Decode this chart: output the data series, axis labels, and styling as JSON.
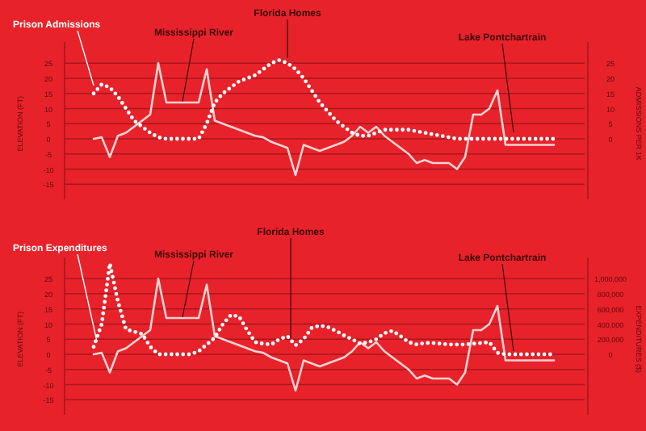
{
  "chart_data": [
    {
      "type": "line",
      "categories": [
        null,
        null,
        null,
        null,
        null,
        null,
        null,
        null,
        null,
        null,
        null,
        null,
        null,
        null,
        null,
        null,
        null,
        null,
        null,
        null,
        null,
        null,
        null,
        null,
        null,
        null,
        null,
        null,
        null,
        null,
        null,
        null,
        null,
        null,
        null,
        null,
        null,
        null,
        null,
        null,
        null,
        null,
        null,
        null,
        null,
        null,
        null,
        null,
        null,
        null,
        null,
        null,
        null,
        null,
        null,
        null,
        null,
        null
      ],
      "ylabel": "ELEVATION (FT)",
      "y2label": "ADMISSIONS PER 1K",
      "ylim": [
        -20,
        32
      ],
      "yticks": [
        25,
        20,
        15,
        10,
        5,
        0,
        -5,
        -10,
        -15
      ],
      "y2lim": [
        -20,
        32
      ],
      "y2ticks": [
        25,
        20,
        15,
        10,
        5,
        0
      ],
      "grid": "y",
      "tick_labels": "y",
      "annotations": [
        "Mississippi River",
        "Florida Homes",
        "Lake Pontchartrain"
      ],
      "series": [
        {
          "color": "#f6d2d2",
          "line_style": "solid",
          "values": [
            0,
            0.5,
            -6,
            1,
            2,
            4,
            6,
            8,
            25,
            12,
            12,
            12,
            12,
            12,
            23,
            6,
            5,
            4,
            3,
            2,
            1,
            0.5,
            -1,
            -2,
            -3,
            -12,
            -2,
            -3,
            -4,
            -3,
            -2,
            -1,
            1,
            4,
            2,
            4,
            1,
            -1,
            -3,
            -5,
            -8,
            -7,
            -8,
            -8,
            -8,
            -10,
            -6,
            8,
            8,
            10,
            16,
            -2,
            -2,
            -2,
            -2,
            -2,
            -2,
            -2
          ]
        },
        {
          "name": "Prison Admissions",
          "axis": "y2",
          "color": "#ffffff",
          "line_style": "dotted",
          "values": [
            15,
            18,
            17,
            14,
            10,
            6,
            4,
            2,
            0.5,
            0,
            0,
            0,
            0,
            0,
            5,
            12,
            15,
            17,
            19,
            20,
            21,
            23,
            25,
            26,
            25,
            23,
            20,
            16,
            12,
            9,
            6,
            4,
            2,
            1,
            1,
            2,
            3,
            3,
            3,
            3,
            2.5,
            2,
            1.5,
            1,
            0.5,
            0,
            0,
            0,
            0,
            0,
            0,
            0,
            0,
            0,
            0,
            0,
            0,
            0
          ]
        }
      ]
    },
    {
      "type": "line",
      "categories": [
        null,
        null,
        null,
        null,
        null,
        null,
        null,
        null,
        null,
        null,
        null,
        null,
        null,
        null,
        null,
        null,
        null,
        null,
        null,
        null,
        null,
        null,
        null,
        null,
        null,
        null,
        null,
        null,
        null,
        null,
        null,
        null,
        null,
        null,
        null,
        null,
        null,
        null,
        null,
        null,
        null,
        null,
        null,
        null,
        null,
        null,
        null,
        null,
        null,
        null,
        null,
        null,
        null,
        null,
        null,
        null,
        null,
        null
      ],
      "ylabel": "ELEVATION (FT)",
      "y2label": "EXPENDITURES ($)",
      "ylim": [
        -20,
        32
      ],
      "yticks": [
        25,
        20,
        15,
        10,
        5,
        0,
        -5,
        -10,
        -15
      ],
      "y2lim": [
        -800000,
        1280000
      ],
      "y2ticks": [
        {
          "value": 1000000,
          "label": "1,000,000"
        },
        {
          "value": 800000,
          "label": "800,000"
        },
        {
          "value": 600000,
          "label": "600,000"
        },
        {
          "value": 400000,
          "label": "400,000"
        },
        {
          "value": 200000,
          "label": "200,000"
        },
        0
      ],
      "grid": "y",
      "tick_labels": "y",
      "annotations": [
        "Mississippi River",
        "Florida Homes",
        "Lake Pontchartrain"
      ],
      "series": [
        {
          "color": "#f6d2d2",
          "line_style": "solid",
          "values": [
            0,
            0.5,
            -6,
            1,
            2,
            4,
            6,
            8,
            25,
            12,
            12,
            12,
            12,
            12,
            23,
            6,
            5,
            4,
            3,
            2,
            1,
            0.5,
            -1,
            -2,
            -3,
            -12,
            -2,
            -3,
            -4,
            -3,
            -2,
            -1,
            1,
            4,
            2,
            4,
            1,
            -1,
            -3,
            -5,
            -8,
            -7,
            -8,
            -8,
            -8,
            -10,
            -6,
            8,
            8,
            10,
            16,
            -2,
            -2,
            -2,
            -2,
            -2,
            -2,
            -2
          ]
        },
        {
          "name": "Prison Expenditures",
          "axis": "y2",
          "color": "#ffffff",
          "line_style": "dotted",
          "values": [
            100000,
            400000,
            1200000,
            700000,
            330000,
            300000,
            270000,
            100000,
            0,
            0,
            0,
            0,
            0,
            40000,
            130000,
            220000,
            400000,
            520000,
            500000,
            320000,
            160000,
            140000,
            130000,
            200000,
            240000,
            120000,
            200000,
            350000,
            380000,
            360000,
            310000,
            250000,
            200000,
            140000,
            160000,
            200000,
            280000,
            310000,
            240000,
            160000,
            130000,
            150000,
            150000,
            140000,
            130000,
            130000,
            130000,
            140000,
            150000,
            160000,
            20000,
            0,
            0,
            0,
            0,
            0,
            0,
            0
          ]
        }
      ]
    }
  ]
}
